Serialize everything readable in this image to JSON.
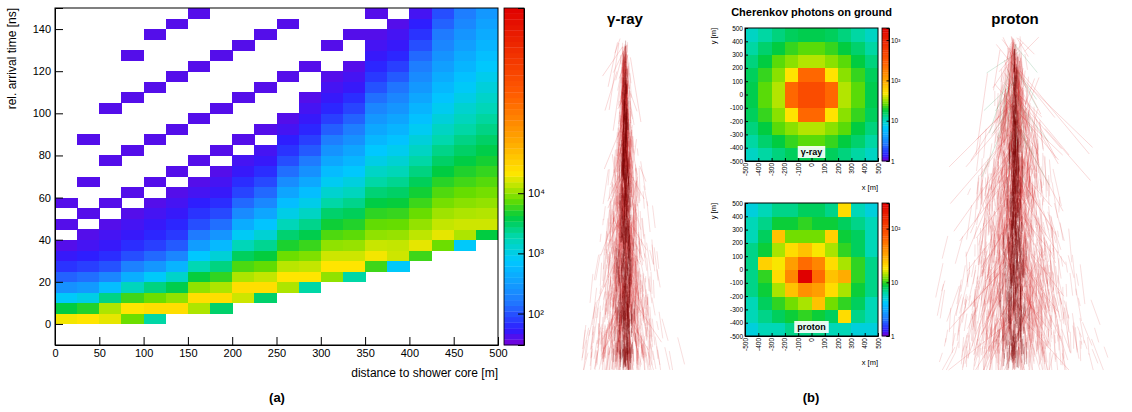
{
  "figure": {
    "panel_labels": [
      "(a)",
      "(b)"
    ],
    "ground_title": "Cherenkov photons on ground",
    "showers": [
      "γ-ray",
      "proton"
    ]
  },
  "chart_data": [
    {
      "type": "heatmap",
      "xlabel": "distance to shower core [m]",
      "ylabel": "rel. arrival time [ns]",
      "xlim": [
        0,
        500
      ],
      "ylim": [
        -10,
        150
      ],
      "xticks": [
        0,
        50,
        100,
        150,
        200,
        250,
        300,
        350,
        400,
        450,
        500
      ],
      "yticks": [
        0,
        20,
        40,
        60,
        80,
        100,
        120,
        140
      ],
      "x_bins": [
        0,
        25,
        50,
        75,
        100,
        125,
        150,
        175,
        200,
        225,
        250,
        275,
        300,
        325,
        350,
        375,
        400,
        425,
        450,
        475,
        500
      ],
      "y_bins": [
        -10,
        -5,
        0,
        5,
        10,
        15,
        20,
        25,
        30,
        35,
        40,
        45,
        50,
        55,
        60,
        65,
        70,
        75,
        80,
        85,
        90,
        95,
        100,
        105,
        110,
        115,
        120,
        125,
        130,
        135,
        140,
        145,
        150
      ],
      "values": [
        [
          null,
          null,
          20000,
          4000,
          800,
          250,
          120,
          70,
          50,
          40,
          null,
          40,
          null,
          40,
          null,
          null,
          null,
          null,
          null,
          null,
          null,
          null,
          null,
          null,
          null,
          null,
          null,
          null,
          null,
          null,
          null,
          null
        ],
        [
          null,
          null,
          22000,
          5000,
          1000,
          300,
          140,
          80,
          55,
          45,
          40,
          null,
          40,
          null,
          null,
          40,
          null,
          null,
          null,
          40,
          null,
          null,
          null,
          null,
          null,
          null,
          null,
          null,
          null,
          null,
          null,
          null
        ],
        [
          null,
          null,
          18000,
          12000,
          2500,
          600,
          200,
          100,
          65,
          50,
          45,
          40,
          null,
          40,
          null,
          null,
          null,
          40,
          null,
          null,
          null,
          null,
          40,
          null,
          null,
          null,
          null,
          null,
          null,
          null,
          null,
          null
        ],
        [
          null,
          null,
          8000,
          22000,
          6000,
          1600,
          450,
          180,
          95,
          65,
          50,
          45,
          40,
          null,
          40,
          null,
          null,
          null,
          40,
          null,
          null,
          null,
          null,
          40,
          null,
          null,
          null,
          40,
          null,
          null,
          null,
          null
        ],
        [
          null,
          null,
          2000,
          25000,
          8000,
          2600,
          800,
          280,
          130,
          80,
          60,
          50,
          45,
          40,
          null,
          40,
          null,
          null,
          null,
          40,
          null,
          null,
          null,
          null,
          40,
          null,
          null,
          null,
          null,
          40,
          null,
          null
        ],
        [
          null,
          null,
          null,
          25000,
          10000,
          3700,
          1400,
          500,
          200,
          110,
          75,
          60,
          50,
          45,
          40,
          null,
          40,
          null,
          null,
          null,
          40,
          null,
          null,
          null,
          null,
          40,
          null,
          null,
          null,
          null,
          40,
          null
        ],
        [
          null,
          null,
          null,
          12000,
          25000,
          10000,
          4200,
          1800,
          750,
          320,
          160,
          95,
          70,
          55,
          45,
          40,
          null,
          40,
          null,
          null,
          null,
          40,
          null,
          null,
          null,
          null,
          40,
          null,
          null,
          null,
          null,
          40
        ],
        [
          null,
          null,
          null,
          3000,
          25000,
          12000,
          5500,
          2600,
          1200,
          560,
          270,
          140,
          90,
          65,
          50,
          45,
          40,
          null,
          40,
          null,
          null,
          null,
          40,
          null,
          null,
          null,
          null,
          40,
          null,
          null,
          null,
          null
        ],
        [
          null,
          null,
          null,
          null,
          15000,
          25000,
          12000,
          6500,
          3300,
          1700,
          850,
          430,
          220,
          130,
          85,
          65,
          50,
          45,
          null,
          40,
          null,
          null,
          null,
          40,
          null,
          null,
          null,
          null,
          40,
          null,
          null,
          null
        ],
        [
          null,
          null,
          null,
          null,
          3000,
          25000,
          14000,
          7500,
          4100,
          2300,
          1250,
          700,
          380,
          210,
          130,
          90,
          65,
          50,
          45,
          null,
          40,
          null,
          null,
          null,
          40,
          null,
          null,
          null,
          null,
          40,
          null,
          null
        ],
        [
          null,
          null,
          null,
          null,
          null,
          12000,
          22000,
          13000,
          8000,
          4800,
          2900,
          1700,
          1000,
          620,
          370,
          230,
          140,
          95,
          70,
          55,
          45,
          40,
          null,
          null,
          null,
          40,
          null,
          null,
          null,
          null,
          40,
          null
        ],
        [
          null,
          null,
          null,
          null,
          null,
          2000,
          22000,
          14000,
          9000,
          5800,
          3700,
          2400,
          1500,
          970,
          620,
          400,
          250,
          160,
          110,
          80,
          60,
          50,
          45,
          40,
          null,
          null,
          40,
          null,
          null,
          null,
          null,
          null
        ],
        [
          null,
          null,
          null,
          null,
          null,
          null,
          10000,
          22000,
          15000,
          10000,
          6600,
          4400,
          3000,
          2000,
          1300,
          880,
          590,
          390,
          260,
          170,
          115,
          80,
          60,
          50,
          45,
          40,
          null,
          null,
          40,
          null,
          null,
          null
        ],
        [
          null,
          null,
          null,
          null,
          null,
          null,
          2000,
          22000,
          15000,
          10500,
          7200,
          5000,
          3400,
          2400,
          1600,
          1100,
          770,
          530,
          370,
          250,
          170,
          120,
          85,
          65,
          50,
          45,
          40,
          null,
          null,
          40,
          null,
          null
        ],
        [
          null,
          null,
          null,
          null,
          null,
          null,
          null,
          6000,
          20000,
          14500,
          10000,
          7500,
          5400,
          3900,
          2800,
          2000,
          1450,
          1000,
          750,
          540,
          390,
          280,
          200,
          140,
          100,
          75,
          60,
          50,
          45,
          40,
          null,
          40
        ],
        [
          null,
          null,
          null,
          null,
          null,
          null,
          null,
          800,
          15000,
          14000,
          10500,
          7700,
          5700,
          4200,
          3100,
          2300,
          1700,
          1250,
          920,
          680,
          500,
          370,
          270,
          200,
          150,
          110,
          80,
          60,
          50,
          45,
          40,
          null
        ],
        [
          null,
          null,
          null,
          null,
          null,
          null,
          null,
          null,
          6000,
          18000,
          13500,
          10300,
          7800,
          5900,
          4500,
          3400,
          2600,
          2000,
          1500,
          1150,
          870,
          660,
          500,
          380,
          290,
          220,
          170,
          130,
          95,
          70,
          55,
          45
        ],
        [
          null,
          null,
          null,
          null,
          null,
          null,
          null,
          null,
          null,
          8000,
          18000,
          14000,
          11000,
          8500,
          6700,
          5200,
          4000,
          3100,
          2450,
          1900,
          1500,
          1150,
          900,
          700,
          550,
          430,
          330,
          260,
          200,
          160,
          120,
          95
        ],
        [
          null,
          null,
          null,
          null,
          null,
          null,
          null,
          null,
          null,
          800,
          12000,
          15000,
          12000,
          9600,
          7700,
          6100,
          4900,
          3900,
          3100,
          2500,
          2000,
          1600,
          1300,
          1000,
          820,
          650,
          520,
          420,
          330,
          270,
          210,
          170
        ],
        [
          null,
          null,
          null,
          null,
          null,
          null,
          null,
          null,
          null,
          null,
          4000,
          15000,
          12500,
          10200,
          8400,
          6900,
          5600,
          4600,
          3800,
          3100,
          2500,
          2100,
          1700,
          1400,
          1150,
          940,
          770,
          630,
          520,
          420,
          350,
          290
        ]
      ],
      "colorbar": {
        "range": [
          30,
          12000000
        ],
        "log": true,
        "ticks": [
          {
            "value": 100,
            "label": "10²"
          },
          {
            "value": 1000,
            "label": "10³"
          },
          {
            "value": 10000,
            "label": "10⁴"
          }
        ]
      }
    },
    {
      "type": "heatmap",
      "title": "γ-ray",
      "xlabel": "x [m]",
      "ylabel": "y [m]",
      "xlim": [
        -500,
        500
      ],
      "ylim": [
        -500,
        500
      ],
      "xticks": [
        -500,
        -400,
        -300,
        -200,
        -100,
        0,
        100,
        200,
        300,
        400,
        500
      ],
      "yticks": [
        -500,
        -400,
        -300,
        -200,
        -100,
        0,
        100,
        200,
        300,
        400,
        500
      ],
      "x_bins": [
        -500,
        -400,
        -300,
        -200,
        -100,
        0,
        100,
        200,
        300,
        400,
        500
      ],
      "y_bins": [
        -500,
        -400,
        -300,
        -200,
        -100,
        0,
        100,
        200,
        300,
        400,
        500
      ],
      "values": [
        [
          10,
          12,
          14,
          16,
          17,
          17,
          16,
          14,
          12,
          10
        ],
        [
          12,
          15,
          18,
          22,
          25,
          25,
          22,
          18,
          15,
          12
        ],
        [
          14,
          18,
          25,
          30,
          35,
          35,
          30,
          25,
          18,
          14
        ],
        [
          16,
          22,
          30,
          50,
          250,
          250,
          50,
          30,
          22,
          16
        ],
        [
          17,
          25,
          35,
          250,
          400,
          400,
          250,
          35,
          25,
          17
        ],
        [
          17,
          25,
          35,
          250,
          400,
          400,
          250,
          35,
          25,
          17
        ],
        [
          16,
          22,
          30,
          50,
          250,
          250,
          50,
          30,
          22,
          16
        ],
        [
          14,
          18,
          25,
          30,
          35,
          35,
          30,
          25,
          18,
          14
        ],
        [
          12,
          15,
          18,
          22,
          25,
          25,
          22,
          18,
          15,
          12
        ],
        [
          10,
          12,
          14,
          16,
          17,
          17,
          16,
          14,
          12,
          10
        ]
      ],
      "colorbar": {
        "range": [
          1,
          2000
        ],
        "log": true,
        "ticks": [
          1,
          10,
          {
            "value": 100,
            "label": "10²"
          },
          {
            "value": 1000,
            "label": "10³"
          }
        ]
      }
    },
    {
      "type": "heatmap",
      "title": "proton",
      "xlabel": "x [m]",
      "ylabel": "y [m]",
      "xlim": [
        -500,
        500
      ],
      "ylim": [
        -500,
        500
      ],
      "xticks": [
        -500,
        -400,
        -300,
        -200,
        -100,
        0,
        100,
        200,
        300,
        400,
        500
      ],
      "yticks": [
        -500,
        -400,
        -300,
        -200,
        -100,
        0,
        100,
        200,
        300,
        400,
        500
      ],
      "x_bins": [
        -500,
        -400,
        -300,
        -200,
        -100,
        0,
        100,
        200,
        300,
        400,
        500
      ],
      "y_bins": [
        -500,
        -400,
        -300,
        -200,
        -100,
        0,
        100,
        200,
        300,
        400,
        500
      ],
      "values": [
        [
          5,
          6,
          6,
          7,
          7,
          7,
          7,
          6,
          6,
          5
        ],
        [
          6,
          7,
          8,
          9,
          10,
          22,
          9,
          8,
          7,
          6
        ],
        [
          6,
          8,
          10,
          14,
          20,
          18,
          14,
          25,
          9,
          7
        ],
        [
          7,
          9,
          12,
          25,
          45,
          35,
          20,
          12,
          9,
          7
        ],
        [
          7,
          10,
          14,
          40,
          300,
          60,
          25,
          12,
          10,
          8
        ],
        [
          7,
          9,
          25,
          35,
          60,
          45,
          18,
          12,
          9,
          8
        ],
        [
          6,
          8,
          12,
          20,
          25,
          20,
          14,
          22,
          9,
          7
        ],
        [
          6,
          20,
          10,
          14,
          30,
          14,
          10,
          9,
          8,
          20
        ],
        [
          5,
          7,
          8,
          9,
          10,
          10,
          8,
          8,
          7,
          6
        ],
        [
          5,
          6,
          6,
          7,
          7,
          7,
          6,
          6,
          6,
          5
        ]
      ],
      "colorbar": {
        "range": [
          1,
          300
        ],
        "log": true,
        "ticks": [
          1,
          10,
          {
            "value": 100,
            "label": "10²"
          }
        ]
      }
    }
  ]
}
